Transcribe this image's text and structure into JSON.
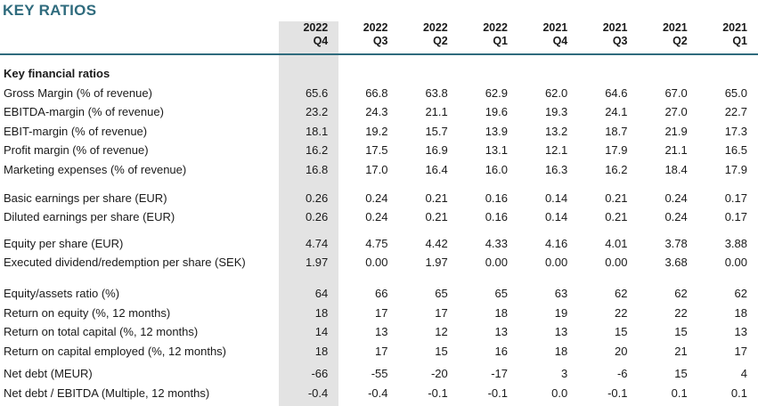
{
  "title": "KEY RATIOS",
  "colors": {
    "accent": "#2f6b7d",
    "highlight_column": "#e3e3e3",
    "text": "#1a1a1a"
  },
  "table": {
    "columns": [
      {
        "year": "2022",
        "quarter": "Q4",
        "highlighted": true
      },
      {
        "year": "2022",
        "quarter": "Q3",
        "highlighted": false
      },
      {
        "year": "2022",
        "quarter": "Q2",
        "highlighted": false
      },
      {
        "year": "2022",
        "quarter": "Q1",
        "highlighted": false
      },
      {
        "year": "2021",
        "quarter": "Q4",
        "highlighted": false
      },
      {
        "year": "2021",
        "quarter": "Q3",
        "highlighted": false
      },
      {
        "year": "2021",
        "quarter": "Q2",
        "highlighted": false
      },
      {
        "year": "2021",
        "quarter": "Q1",
        "highlighted": false
      }
    ],
    "sections": [
      {
        "header": "Key financial ratios",
        "rows": [
          {
            "label": "Gross Margin (% of revenue)",
            "values": [
              "65.6",
              "66.8",
              "63.8",
              "62.9",
              "62.0",
              "64.6",
              "67.0",
              "65.0"
            ]
          },
          {
            "label": "EBITDA-margin (% of revenue)",
            "values": [
              "23.2",
              "24.3",
              "21.1",
              "19.6",
              "19.3",
              "24.1",
              "27.0",
              "22.7"
            ]
          },
          {
            "label": "EBIT-margin (% of revenue)",
            "values": [
              "18.1",
              "19.2",
              "15.7",
              "13.9",
              "13.2",
              "18.7",
              "21.9",
              "17.3"
            ]
          },
          {
            "label": "Profit margin (% of revenue)",
            "values": [
              "16.2",
              "17.5",
              "16.9",
              "13.1",
              "12.1",
              "17.9",
              "21.1",
              "16.5"
            ]
          },
          {
            "label": "Marketing expenses (% of revenue)",
            "values": [
              "16.8",
              "17.0",
              "16.4",
              "16.0",
              "16.3",
              "16.2",
              "18.4",
              "17.9"
            ]
          }
        ]
      },
      {
        "header": "",
        "rows": [
          {
            "label": "Basic earnings per share (EUR)",
            "values": [
              "0.26",
              "0.24",
              "0.21",
              "0.16",
              "0.14",
              "0.21",
              "0.24",
              "0.17"
            ]
          },
          {
            "label": "Diluted earnings per share (EUR)",
            "values": [
              "0.26",
              "0.24",
              "0.21",
              "0.16",
              "0.14",
              "0.21",
              "0.24",
              "0.17"
            ]
          }
        ]
      },
      {
        "header": "",
        "rows": [
          {
            "label": "Equity per share (EUR)",
            "values": [
              "4.74",
              "4.75",
              "4.42",
              "4.33",
              "4.16",
              "4.01",
              "3.78",
              "3.88"
            ]
          },
          {
            "label": "Executed dividend/redemption per share (SEK)",
            "values": [
              "1.97",
              "0.00",
              "1.97",
              "0.00",
              "0.00",
              "0.00",
              "3.68",
              "0.00"
            ]
          }
        ]
      },
      {
        "header": "",
        "rows": [
          {
            "label": "Equity/assets ratio (%)",
            "values": [
              "64",
              "66",
              "65",
              "65",
              "63",
              "62",
              "62",
              "62"
            ]
          },
          {
            "label": "Return on equity (%, 12 months)",
            "values": [
              "18",
              "17",
              "17",
              "18",
              "19",
              "22",
              "22",
              "18"
            ]
          },
          {
            "label": "Return on total capital (%, 12 months)",
            "values": [
              "14",
              "13",
              "12",
              "13",
              "13",
              "15",
              "15",
              "13"
            ]
          },
          {
            "label": "Return on capital employed (%, 12 months)",
            "values": [
              "18",
              "17",
              "15",
              "16",
              "18",
              "20",
              "21",
              "17"
            ]
          }
        ]
      },
      {
        "header": "",
        "rows": [
          {
            "label": "Net debt (MEUR)",
            "values": [
              "-66",
              "-55",
              "-20",
              "-17",
              "3",
              "-6",
              "15",
              "4"
            ]
          },
          {
            "label": "Net debt / EBITDA (Multiple, 12 months)",
            "values": [
              "-0.4",
              "-0.4",
              "-0.1",
              "-0.1",
              "0.0",
              "-0.1",
              "0.1",
              "0.1"
            ]
          }
        ]
      }
    ]
  }
}
